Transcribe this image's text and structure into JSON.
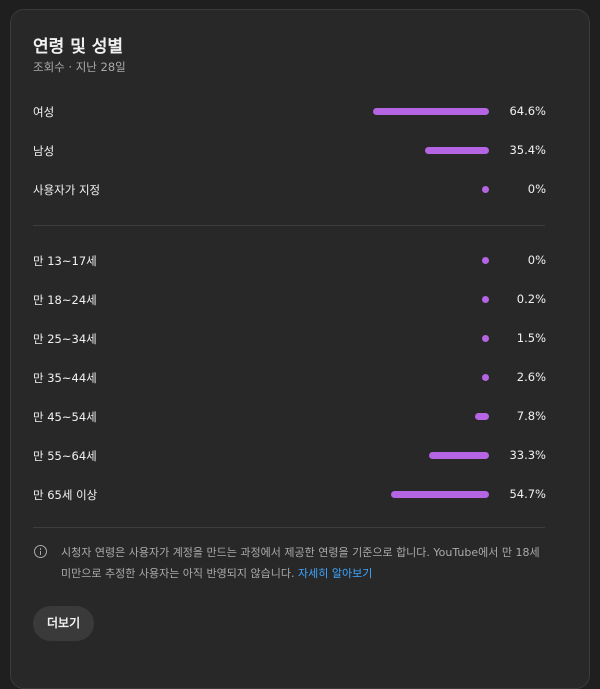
{
  "card": {
    "title": "연령 및 성별",
    "subtitle": "조회수 · 지난 28일"
  },
  "accent_color": "#b565e3",
  "link_color": "#3ea6ff",
  "gender": [
    {
      "label": "여성",
      "percent": 64.6,
      "value_text": "64.6%"
    },
    {
      "label": "남성",
      "percent": 35.4,
      "value_text": "35.4%"
    },
    {
      "label": "사용자가 지정",
      "percent": 0,
      "value_text": "0%"
    }
  ],
  "age": [
    {
      "label": "만 13~17세",
      "percent": 0,
      "value_text": "0%"
    },
    {
      "label": "만 18~24세",
      "percent": 0.2,
      "value_text": "0.2%"
    },
    {
      "label": "만 25~34세",
      "percent": 1.5,
      "value_text": "1.5%"
    },
    {
      "label": "만 35~44세",
      "percent": 2.6,
      "value_text": "2.6%"
    },
    {
      "label": "만 45~54세",
      "percent": 7.8,
      "value_text": "7.8%"
    },
    {
      "label": "만 55~64세",
      "percent": 33.3,
      "value_text": "33.3%"
    },
    {
      "label": "만 65세 이상",
      "percent": 54.7,
      "value_text": "54.7%"
    }
  ],
  "note": {
    "text": "시청자 연령은 사용자가 계정을 만드는 과정에서 제공한 연령을 기준으로 합니다. YouTube에서 만 18세 미만으로 추정한 사용자는 아직 반영되지 않습니다.",
    "link_label": "자세히 알아보기"
  },
  "more_button": {
    "label": "더보기"
  },
  "icons": {
    "info": "info-icon"
  }
}
